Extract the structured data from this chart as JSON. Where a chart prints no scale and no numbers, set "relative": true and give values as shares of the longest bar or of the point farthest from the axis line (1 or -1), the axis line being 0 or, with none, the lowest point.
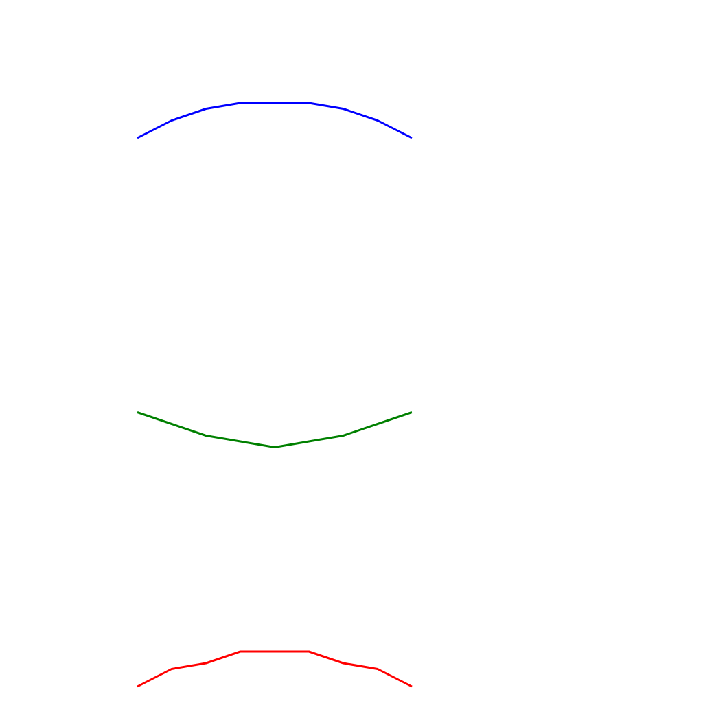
{
  "chart_data": {
    "type": "line",
    "relative": true,
    "categories": [
      null,
      null,
      null,
      null,
      null,
      null,
      null,
      null,
      null
    ],
    "series": [
      {
        "color": "#0000ff",
        "values": [
          0.94,
          0.97,
          0.99,
          1,
          1,
          1,
          0.99,
          0.97,
          0.94
        ]
      },
      {
        "color": "#008000",
        "values": [
          0.47,
          0.45,
          0.43,
          0.42,
          0.41,
          0.42,
          0.43,
          0.45,
          0.47
        ]
      },
      {
        "color": "#ff0000",
        "values": [
          0,
          0.03,
          0.04,
          0.06,
          0.06,
          0.06,
          0.04,
          0.03,
          0
        ]
      }
    ],
    "grid": false,
    "legend": false
  }
}
